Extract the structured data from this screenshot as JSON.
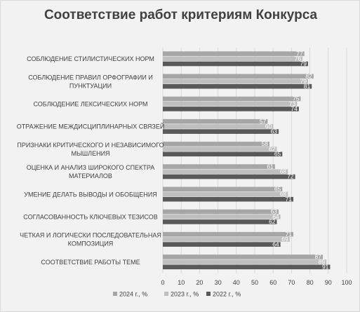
{
  "chart_data": {
    "type": "bar",
    "orientation": "horizontal",
    "title": "Соответствие работ критериям Конкурса",
    "xlabel": "",
    "ylabel": "",
    "xlim": [
      0,
      100
    ],
    "x_ticks": [
      0,
      10,
      20,
      30,
      40,
      50,
      60,
      70,
      80,
      90,
      100
    ],
    "grid": true,
    "legend_position": "bottom",
    "categories": [
      [
        "СОБЛЮДЕНИЕ СТИЛИСТИЧЕСКИХ НОРМ"
      ],
      [
        "СОБЛЮДЕНИЕ ПРАВИЛ ОРФОГРАФИИ И",
        "ПУНКТУАЦИИ"
      ],
      [
        "СОБЛЮДЕНИЕ ЛЕКСИЧЕСКИХ НОРМ"
      ],
      [
        "ОТРАЖЕНИЕ МЕЖДИСЦИПЛИНАРНЫХ СВЯЗЕЙ"
      ],
      [
        "ПРИЗНАКИ КРИТИЧЕСКОГО И НЕЗАВИСИМОГО",
        "МЫШЛЕНИЯ"
      ],
      [
        "ОЦЕНКА И АНАЛИЗ ШИРОКОГО СПЕКТРА",
        "МАТЕРИАЛОВ"
      ],
      [
        "УМЕНИЕ ДЕЛАТЬ ВЫВОДЫ И ОБОБЩЕНИЯ"
      ],
      [
        "СОГЛАСОВАННОСТЬ КЛЮЧЕВЫХ ТЕЗИСОВ"
      ],
      [
        "ЧЕТКАЯ И ЛОГИЧЕСКИ ПОСЛЕДОВАТЕЛЬНАЯ",
        "КОМПОЗИЦИЯ"
      ],
      [
        "СООТВЕТСТВИЕ РАБОТЫ ТЕМЕ"
      ]
    ],
    "series": [
      {
        "name": "2024 г., %",
        "color": "#a6a6a6",
        "values": [
          77,
          82,
          75,
          57,
          58,
          61,
          65,
          63,
          71,
          87
        ]
      },
      {
        "name": "2023 г., %",
        "color": "#bfbfbf",
        "values": [
          76,
          79,
          73,
          60,
          62,
          68,
          68,
          64,
          69,
          89
        ]
      },
      {
        "name": "2022 г., %",
        "color": "#595959",
        "values": [
          79,
          81,
          74,
          63,
          65,
          72,
          71,
          62,
          64,
          91
        ]
      }
    ]
  }
}
